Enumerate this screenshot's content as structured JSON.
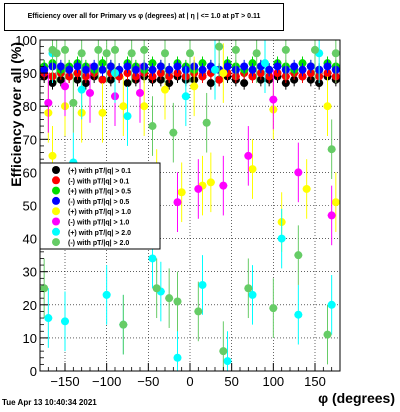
{
  "title": "Efficiency over all for Primary vs φ (degrees) at | η | <= 1.0 at pT > 0.11",
  "timestamp": "Tue Apr 13 10:40:34 2021",
  "chart_data": {
    "type": "scatter",
    "xlabel": "φ (degrees)",
    "ylabel": "Efficiency over all (%)",
    "xlim": [
      -180,
      180
    ],
    "ylim": [
      0,
      100
    ],
    "x_ticks": [
      -150,
      -100,
      -50,
      0,
      50,
      100,
      150
    ],
    "y_ticks": [
      0,
      10,
      20,
      30,
      40,
      50,
      60,
      70,
      80,
      90,
      100
    ],
    "grid": true,
    "legend_position": "center-left",
    "series": [
      {
        "name": "(+) with pT/|q| > 0.1",
        "color": "#000000",
        "points": [
          [
            -175,
            89
          ],
          [
            -165,
            87
          ],
          [
            -155,
            88
          ],
          [
            -145,
            89
          ],
          [
            -135,
            88
          ],
          [
            -125,
            87
          ],
          [
            -115,
            89
          ],
          [
            -105,
            88
          ],
          [
            -95,
            88
          ],
          [
            -85,
            89
          ],
          [
            -75,
            87
          ],
          [
            -65,
            88
          ],
          [
            -55,
            89
          ],
          [
            -45,
            88
          ],
          [
            -35,
            88
          ],
          [
            -25,
            87
          ],
          [
            -15,
            89
          ],
          [
            -5,
            88
          ],
          [
            5,
            88
          ],
          [
            15,
            89
          ],
          [
            25,
            87
          ],
          [
            35,
            88
          ],
          [
            45,
            89
          ],
          [
            55,
            88
          ],
          [
            65,
            87
          ],
          [
            75,
            89
          ],
          [
            85,
            88
          ],
          [
            95,
            88
          ],
          [
            105,
            89
          ],
          [
            115,
            87
          ],
          [
            125,
            88
          ],
          [
            135,
            89
          ],
          [
            145,
            88
          ],
          [
            155,
            87
          ],
          [
            165,
            89
          ],
          [
            175,
            88
          ]
        ]
      },
      {
        "name": "(-) with pT/|q| > 0.1",
        "color": "#ff0000",
        "points": [
          [
            -175,
            90
          ],
          [
            -165,
            89
          ],
          [
            -155,
            90
          ],
          [
            -145,
            89
          ],
          [
            -135,
            90
          ],
          [
            -125,
            89
          ],
          [
            -115,
            90
          ],
          [
            -105,
            88
          ],
          [
            -95,
            90
          ],
          [
            -85,
            89
          ],
          [
            -75,
            90
          ],
          [
            -65,
            89
          ],
          [
            -55,
            90
          ],
          [
            -45,
            89
          ],
          [
            -35,
            90
          ],
          [
            -25,
            89
          ],
          [
            -15,
            90
          ],
          [
            -5,
            89
          ],
          [
            5,
            90
          ],
          [
            15,
            89
          ],
          [
            25,
            90
          ],
          [
            35,
            88
          ],
          [
            45,
            90
          ],
          [
            55,
            89
          ],
          [
            65,
            90
          ],
          [
            75,
            89
          ],
          [
            85,
            90
          ],
          [
            95,
            89
          ],
          [
            105,
            90
          ],
          [
            115,
            89
          ],
          [
            125,
            90
          ],
          [
            135,
            89
          ],
          [
            145,
            90
          ],
          [
            155,
            89
          ],
          [
            165,
            90
          ],
          [
            175,
            89
          ]
        ]
      },
      {
        "name": "(+) with pT/|q| > 0.5",
        "color": "#00dd00",
        "points": [
          [
            -175,
            92
          ],
          [
            -165,
            93
          ],
          [
            -155,
            91
          ],
          [
            -145,
            92
          ],
          [
            -135,
            93
          ],
          [
            -125,
            92
          ],
          [
            -115,
            91
          ],
          [
            -105,
            93
          ],
          [
            -95,
            92
          ],
          [
            -85,
            91
          ],
          [
            -75,
            93
          ],
          [
            -65,
            92
          ],
          [
            -55,
            91
          ],
          [
            -45,
            93
          ],
          [
            -35,
            92
          ],
          [
            -25,
            91
          ],
          [
            -15,
            93
          ],
          [
            -5,
            92
          ],
          [
            5,
            91
          ],
          [
            15,
            93
          ],
          [
            25,
            92
          ],
          [
            35,
            91
          ],
          [
            45,
            93
          ],
          [
            55,
            92
          ],
          [
            65,
            91
          ],
          [
            75,
            93
          ],
          [
            85,
            92
          ],
          [
            95,
            91
          ],
          [
            105,
            93
          ],
          [
            115,
            92
          ],
          [
            125,
            91
          ],
          [
            135,
            93
          ],
          [
            145,
            92
          ],
          [
            155,
            91
          ],
          [
            165,
            93
          ],
          [
            175,
            92
          ]
        ]
      },
      {
        "name": "(-) with pT/|q| > 0.5",
        "color": "#0000ff",
        "points": [
          [
            -175,
            91
          ],
          [
            -165,
            92
          ],
          [
            -155,
            92
          ],
          [
            -145,
            91
          ],
          [
            -135,
            92
          ],
          [
            -125,
            91
          ],
          [
            -115,
            92
          ],
          [
            -105,
            91
          ],
          [
            -95,
            92
          ],
          [
            -85,
            91
          ],
          [
            -75,
            92
          ],
          [
            -65,
            91
          ],
          [
            -55,
            92
          ],
          [
            -45,
            91
          ],
          [
            -35,
            92
          ],
          [
            -25,
            91
          ],
          [
            -15,
            92
          ],
          [
            -5,
            91
          ],
          [
            5,
            92
          ],
          [
            15,
            91
          ],
          [
            25,
            92
          ],
          [
            35,
            91
          ],
          [
            45,
            92
          ],
          [
            55,
            91
          ],
          [
            65,
            92
          ],
          [
            75,
            91
          ],
          [
            85,
            92
          ],
          [
            95,
            91
          ],
          [
            105,
            92
          ],
          [
            115,
            91
          ],
          [
            125,
            92
          ],
          [
            135,
            91
          ],
          [
            145,
            92
          ],
          [
            155,
            91
          ],
          [
            165,
            92
          ],
          [
            175,
            91
          ]
        ]
      },
      {
        "name": "(+) with pT/|q| > 1.0",
        "color": "#ffff00",
        "points": [
          [
            -170,
            78
          ],
          [
            -165,
            65
          ],
          [
            -150,
            80
          ],
          [
            -130,
            78
          ],
          [
            -105,
            78
          ],
          [
            -80,
            80
          ],
          [
            -55,
            80
          ],
          [
            -40,
            58
          ],
          [
            -30,
            85
          ],
          [
            -10,
            54
          ],
          [
            5,
            86
          ],
          [
            15,
            56
          ],
          [
            25,
            57
          ],
          [
            40,
            90
          ],
          [
            75,
            61
          ],
          [
            100,
            79
          ],
          [
            110,
            45
          ],
          [
            140,
            55
          ],
          [
            165,
            80
          ],
          [
            175,
            51
          ]
        ]
      },
      {
        "name": "(-) with pT/|q| > 1.0",
        "color": "#ff00ff",
        "points": [
          [
            -170,
            81
          ],
          [
            -150,
            86
          ],
          [
            -120,
            84
          ],
          [
            -90,
            83
          ],
          [
            -60,
            84
          ],
          [
            -15,
            51
          ],
          [
            10,
            55
          ],
          [
            40,
            56
          ],
          [
            70,
            65
          ],
          [
            100,
            82
          ],
          [
            130,
            60
          ],
          [
            170,
            47
          ]
        ]
      },
      {
        "name": "(+) with pT/|q| > 2.0",
        "color": "#00ffff",
        "points": [
          [
            -170,
            16
          ],
          [
            -165,
            96
          ],
          [
            -150,
            15
          ],
          [
            -140,
            63
          ],
          [
            -130,
            85
          ],
          [
            -100,
            23
          ],
          [
            -90,
            90
          ],
          [
            -80,
            14
          ],
          [
            -75,
            77
          ],
          [
            -45,
            34
          ],
          [
            -35,
            24
          ],
          [
            -15,
            4
          ],
          [
            -5,
            83
          ],
          [
            15,
            26
          ],
          [
            30,
            91
          ],
          [
            45,
            3
          ],
          [
            75,
            23
          ],
          [
            90,
            93
          ],
          [
            110,
            40
          ],
          [
            130,
            17
          ],
          [
            155,
            96
          ],
          [
            170,
            20
          ]
        ]
      },
      {
        "name": "(-) with pT/|q| > 2.0",
        "color": "#66cc66",
        "points": [
          [
            -175,
            25
          ],
          [
            -165,
            97
          ],
          [
            -160,
            96
          ],
          [
            -150,
            97
          ],
          [
            -140,
            81
          ],
          [
            -130,
            96
          ],
          [
            -110,
            97
          ],
          [
            -100,
            96
          ],
          [
            -90,
            97
          ],
          [
            -80,
            14
          ],
          [
            -70,
            96
          ],
          [
            -55,
            97
          ],
          [
            -45,
            74
          ],
          [
            -40,
            25
          ],
          [
            -30,
            96
          ],
          [
            -25,
            22
          ],
          [
            -20,
            72
          ],
          [
            -15,
            21
          ],
          [
            0,
            96
          ],
          [
            10,
            18
          ],
          [
            20,
            75
          ],
          [
            35,
            98
          ],
          [
            40,
            6
          ],
          [
            55,
            97
          ],
          [
            70,
            25
          ],
          [
            80,
            96
          ],
          [
            100,
            19
          ],
          [
            115,
            97
          ],
          [
            130,
            35
          ],
          [
            150,
            97
          ],
          [
            165,
            11
          ],
          [
            170,
            67
          ],
          [
            175,
            96
          ]
        ]
      }
    ]
  }
}
